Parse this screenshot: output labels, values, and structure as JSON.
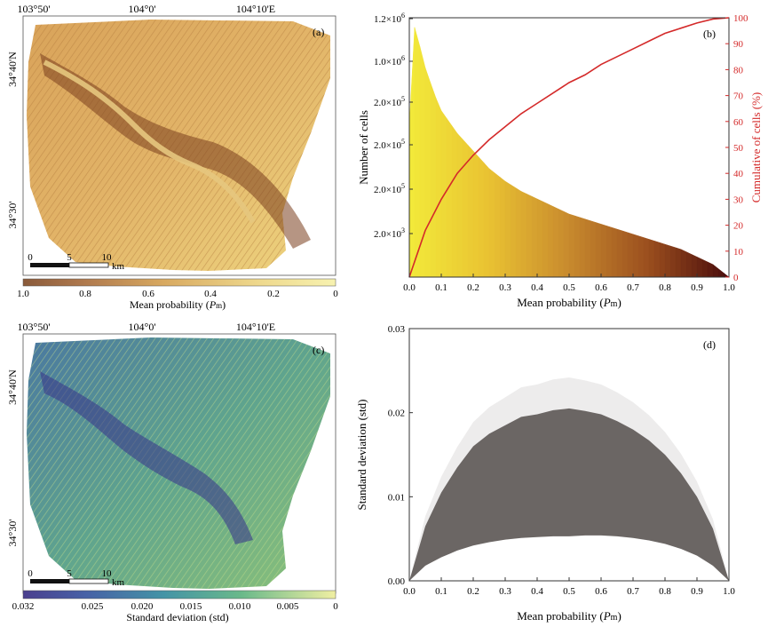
{
  "panels": {
    "a": {
      "label": "(a)",
      "top_ticks": [
        "103°50'",
        "104°0'",
        "104°10'E"
      ],
      "left_ticks": [
        "34°40'N",
        "34°30'"
      ],
      "scalebar": {
        "ticks": [
          "0",
          "5",
          "10"
        ],
        "unit": "km"
      },
      "colorbar": {
        "ticks": [
          "1.0",
          "0.8",
          "0.6",
          "0.4",
          "0.2",
          "0"
        ],
        "title_prefix": "Mean probability (",
        "title_italic": "P",
        "title_sub": "m",
        "title_suffix": ")",
        "colors": [
          "#4a1c10",
          "#8a4a22",
          "#c88a3e",
          "#e8c45e",
          "#f6f0a0"
        ]
      }
    },
    "c": {
      "label": "(c)",
      "top_ticks": [
        "103°50'",
        "104°0'",
        "104°10'E"
      ],
      "left_ticks": [
        "34°40'N",
        "34°30'"
      ],
      "scalebar": {
        "ticks": [
          "0",
          "5",
          "10"
        ],
        "unit": "km"
      },
      "colorbar": {
        "ticks": [
          "0.032",
          "0.025",
          "0.020",
          "0.015",
          "0.010",
          "0.005",
          "0"
        ],
        "title": "Standard deviation (std)",
        "colors": [
          "#3b2f86",
          "#3f5fa8",
          "#3e8fa8",
          "#4fb08f",
          "#98cf72",
          "#e8ec90"
        ]
      }
    }
  },
  "chart_data": [
    {
      "id": "b",
      "label": "(b)",
      "type": "area",
      "xlabel_prefix": "Mean probability (",
      "xlabel_italic": "P",
      "xlabel_sub": "m",
      "xlabel_suffix": ")",
      "ylabel": "Number of cells",
      "y2label": "Cumulative of cells (%)",
      "x_ticks": [
        "0.0",
        "0.1",
        "0.2",
        "0.3",
        "0.4",
        "0.5",
        "0.6",
        "0.7",
        "0.8",
        "0.9",
        "1.0"
      ],
      "y_ticks": [
        {
          "base": "2.0×10",
          "exp": "3"
        },
        {
          "base": "2.0×10",
          "exp": "5"
        },
        {
          "base": "2.0×10",
          "exp": "5"
        },
        {
          "base": "2.0×10",
          "exp": "5"
        },
        {
          "base": "1.0×10",
          "exp": "6"
        },
        {
          "base": "1.2×10",
          "exp": "6"
        }
      ],
      "y2_ticks": [
        "0",
        "10",
        "20",
        "30",
        "40",
        "50",
        "60",
        "70",
        "80",
        "90",
        "100"
      ],
      "xlim": [
        0,
        1
      ],
      "y2lim": [
        0,
        100
      ],
      "histogram": {
        "x": [
          0.0,
          0.01,
          0.02,
          0.03,
          0.05,
          0.08,
          0.1,
          0.15,
          0.2,
          0.25,
          0.3,
          0.35,
          0.4,
          0.45,
          0.5,
          0.55,
          0.6,
          0.65,
          0.7,
          0.75,
          0.8,
          0.85,
          0.9,
          0.95,
          1.0
        ],
        "value_frac": [
          0.6,
          0.97,
          1.0,
          0.93,
          0.83,
          0.72,
          0.66,
          0.57,
          0.5,
          0.43,
          0.38,
          0.34,
          0.31,
          0.28,
          0.25,
          0.23,
          0.21,
          0.19,
          0.17,
          0.15,
          0.13,
          0.11,
          0.08,
          0.05,
          0.0
        ]
      },
      "cumulative": {
        "x": [
          0.0,
          0.05,
          0.1,
          0.15,
          0.2,
          0.25,
          0.3,
          0.35,
          0.4,
          0.45,
          0.5,
          0.55,
          0.6,
          0.65,
          0.7,
          0.75,
          0.8,
          0.85,
          0.9,
          0.95,
          1.0
        ],
        "y": [
          0,
          18,
          30,
          40,
          47,
          53,
          58,
          63,
          67,
          71,
          75,
          78,
          82,
          85,
          88,
          91,
          94,
          96,
          98,
          99.5,
          100
        ]
      },
      "colors": {
        "cumulative": "#d42a2a",
        "low": "#f2ea3a",
        "high": "#4a0c0c"
      }
    },
    {
      "id": "d",
      "label": "(d)",
      "type": "scatter",
      "xlabel_prefix": "Mean probability (",
      "xlabel_italic": "P",
      "xlabel_sub": "m",
      "xlabel_suffix": ")",
      "ylabel": "Standard deviation (std)",
      "x_ticks": [
        "0.0",
        "0.1",
        "0.2",
        "0.3",
        "0.4",
        "0.5",
        "0.6",
        "0.7",
        "0.8",
        "0.9",
        "1.0"
      ],
      "y_ticks": [
        "0.00",
        "0.01",
        "0.02",
        "0.03"
      ],
      "xlim": [
        0,
        1
      ],
      "ylim": [
        0,
        0.03
      ],
      "upper_envelope": {
        "x": [
          0.0,
          0.05,
          0.1,
          0.15,
          0.2,
          0.25,
          0.3,
          0.35,
          0.4,
          0.45,
          0.5,
          0.55,
          0.6,
          0.65,
          0.7,
          0.75,
          0.8,
          0.85,
          0.9,
          0.95,
          1.0
        ],
        "y": [
          0.0,
          0.0065,
          0.0105,
          0.0135,
          0.016,
          0.0175,
          0.0185,
          0.0195,
          0.0198,
          0.0203,
          0.0205,
          0.0202,
          0.0198,
          0.019,
          0.018,
          0.0167,
          0.015,
          0.0128,
          0.01,
          0.0062,
          0.0
        ]
      },
      "lower_envelope": {
        "x": [
          0.0,
          0.05,
          0.1,
          0.15,
          0.2,
          0.25,
          0.3,
          0.35,
          0.4,
          0.45,
          0.5,
          0.55,
          0.6,
          0.65,
          0.7,
          0.75,
          0.8,
          0.85,
          0.9,
          0.95,
          1.0
        ],
        "y": [
          0.0,
          0.0018,
          0.0028,
          0.0036,
          0.0042,
          0.0046,
          0.0049,
          0.0051,
          0.0052,
          0.0053,
          0.0053,
          0.0054,
          0.0054,
          0.0053,
          0.0051,
          0.0048,
          0.0044,
          0.0038,
          0.003,
          0.0018,
          0.0
        ]
      },
      "colors": {
        "points": "#6b6664"
      }
    }
  ]
}
